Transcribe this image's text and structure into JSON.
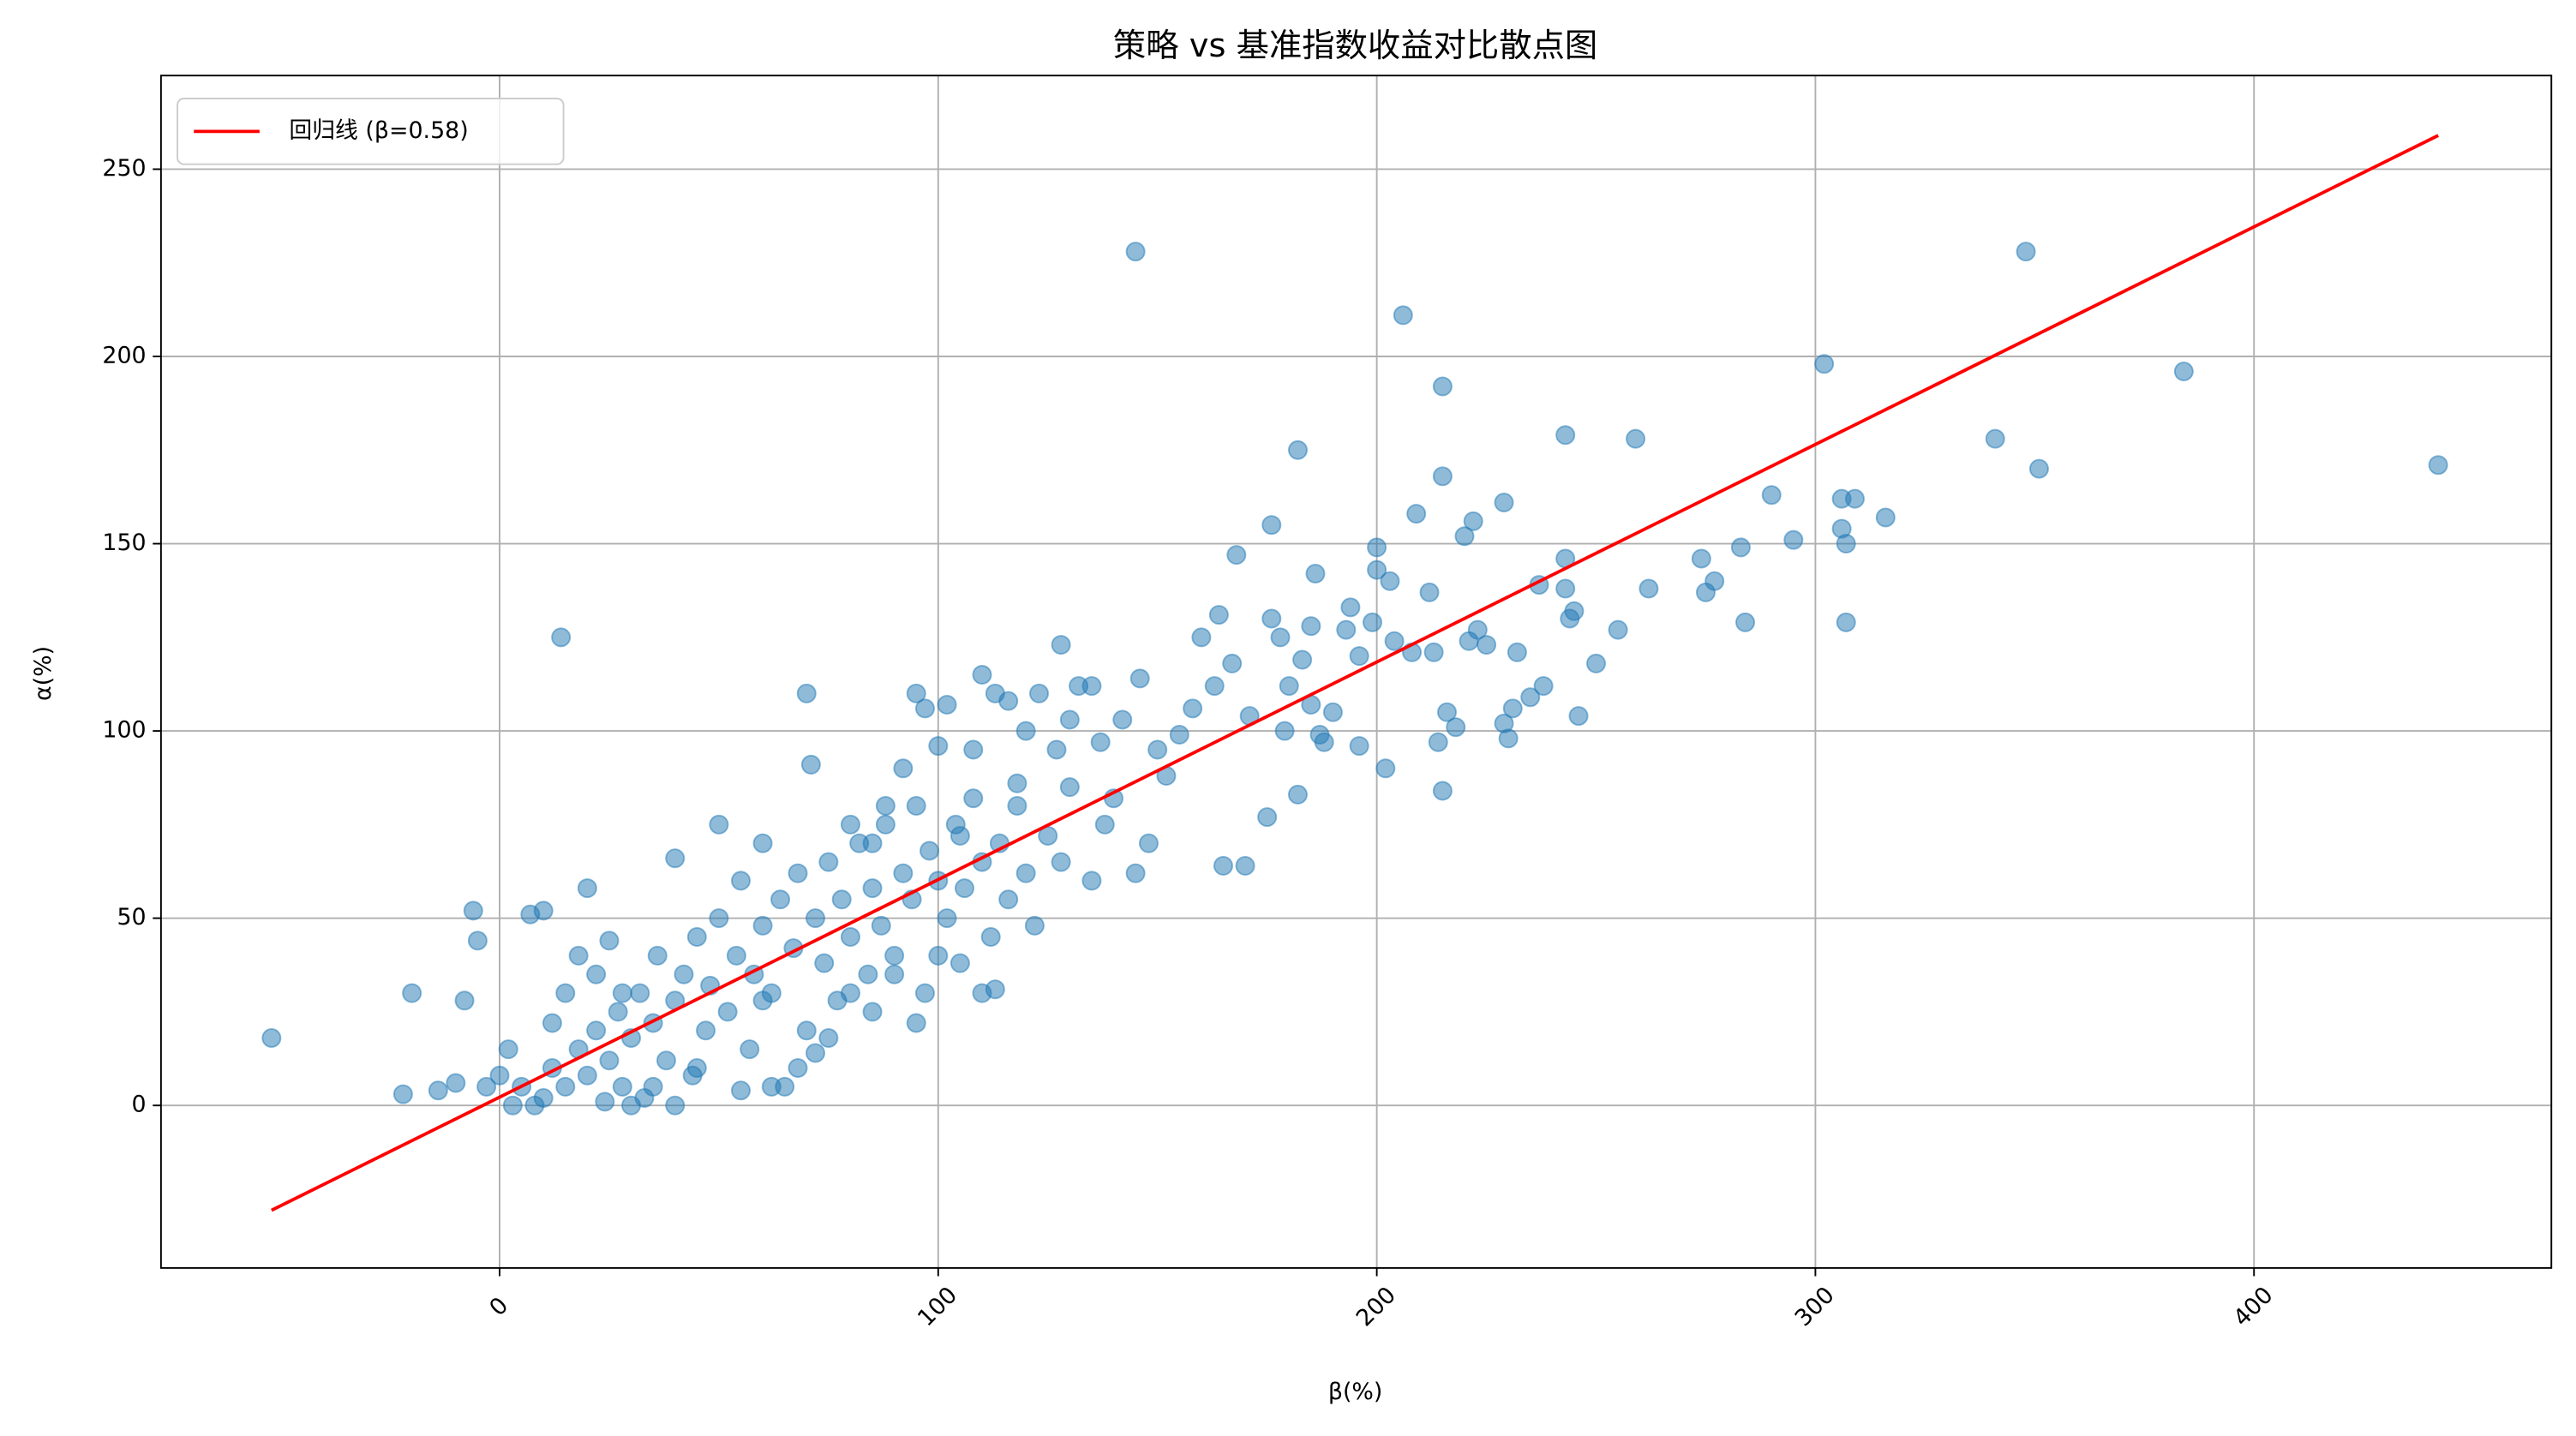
{
  "chart_data": {
    "type": "scatter",
    "title": "策略 vs 基准指数收益对比散点图",
    "x_label": "β(%)",
    "y_label": "α(%)",
    "xlim": [
      -77.2,
      467.8
    ],
    "ylim": [
      -43.4,
      275
    ],
    "xticks": [
      0,
      100,
      200,
      300,
      400
    ],
    "yticks": [
      0,
      50,
      100,
      150,
      200,
      250
    ],
    "grid": true,
    "legend": "upper left",
    "series": [
      {
        "color": "#1f77b4",
        "x": [
          -52,
          -20,
          -22,
          -8,
          14,
          -6,
          -5,
          7,
          145,
          206,
          215,
          182,
          243,
          259,
          348,
          302,
          384,
          341,
          351,
          442,
          316,
          306,
          309,
          306,
          307,
          307,
          290,
          295,
          283,
          274,
          277,
          275,
          284,
          262,
          255,
          250,
          246,
          244,
          245,
          243,
          243,
          237,
          238,
          235,
          231,
          229,
          230,
          232,
          229,
          222,
          220,
          215,
          215,
          214,
          216,
          218,
          221,
          223,
          225,
          213,
          212,
          209,
          200,
          200,
          203,
          204,
          208,
          202,
          199,
          196,
          193,
          194,
          186,
          185,
          187,
          188,
          190,
          196,
          183,
          180,
          178,
          176,
          176,
          171,
          168,
          164,
          167,
          163,
          165,
          170,
          175,
          182,
          179,
          185,
          160,
          158,
          155,
          152,
          150,
          146,
          145,
          148,
          142,
          140,
          137,
          135,
          132,
          130,
          128,
          127,
          123,
          120,
          118,
          116,
          113,
          110,
          108,
          105,
          102,
          100,
          97,
          95,
          92,
          88,
          85,
          80,
          70,
          71,
          60,
          50,
          40,
          20,
          10,
          5,
          8,
          10,
          12,
          15,
          18,
          20,
          22,
          24,
          25,
          27,
          28,
          30,
          32,
          33,
          35,
          36,
          38,
          40,
          42,
          44,
          45,
          47,
          48,
          50,
          52,
          54,
          55,
          57,
          58,
          60,
          62,
          64,
          65,
          67,
          68,
          70,
          72,
          74,
          75,
          77,
          78,
          80,
          82,
          84,
          85,
          87,
          88,
          90,
          92,
          94,
          95,
          97,
          98,
          100,
          102,
          104,
          106,
          108,
          110,
          112,
          114,
          116,
          118,
          120,
          122,
          125,
          128,
          130,
          135,
          138,
          0,
          2,
          -3,
          -10,
          -14,
          3,
          15,
          18,
          25,
          30,
          40,
          55,
          62,
          68,
          72,
          75,
          80,
          85,
          90,
          95,
          100,
          105,
          110,
          113,
          60,
          45,
          35,
          28,
          22,
          12
        ],
        "values": [
          18,
          30,
          3,
          28,
          125,
          52,
          44,
          51,
          228,
          211,
          192,
          175,
          179,
          178,
          228,
          198,
          196,
          178,
          170,
          171,
          157,
          162,
          162,
          154,
          150,
          129,
          163,
          151,
          149,
          146,
          140,
          137,
          129,
          138,
          127,
          118,
          104,
          130,
          132,
          138,
          146,
          139,
          112,
          109,
          106,
          102,
          98,
          121,
          161,
          156,
          152,
          168,
          84,
          97,
          105,
          101,
          124,
          127,
          123,
          121,
          137,
          158,
          149,
          143,
          140,
          124,
          121,
          90,
          129,
          120,
          127,
          133,
          142,
          128,
          99,
          97,
          105,
          96,
          119,
          112,
          125,
          155,
          130,
          104,
          147,
          131,
          118,
          112,
          64,
          64,
          77,
          83,
          100,
          107,
          125,
          106,
          99,
          88,
          95,
          114,
          62,
          70,
          103,
          82,
          97,
          112,
          112,
          103,
          123,
          95,
          110,
          100,
          86,
          108,
          110,
          115,
          95,
          72,
          107,
          96,
          106,
          110,
          90,
          80,
          70,
          75,
          110,
          91,
          70,
          75,
          66,
          58,
          52,
          5,
          0,
          2,
          10,
          5,
          15,
          8,
          20,
          1,
          12,
          25,
          5,
          18,
          30,
          2,
          22,
          40,
          12,
          28,
          35,
          8,
          45,
          20,
          32,
          50,
          25,
          40,
          60,
          15,
          35,
          48,
          30,
          55,
          5,
          42,
          62,
          20,
          50,
          38,
          65,
          28,
          55,
          45,
          70,
          35,
          58,
          48,
          75,
          40,
          62,
          55,
          80,
          30,
          68,
          60,
          50,
          75,
          58,
          82,
          65,
          45,
          70,
          55,
          80,
          62,
          48,
          72,
          65,
          85,
          60,
          75,
          8,
          15,
          5,
          6,
          4,
          0,
          30,
          40,
          44,
          0,
          0,
          4,
          5,
          10,
          14,
          18,
          30,
          25,
          35,
          22,
          40,
          38,
          30,
          31,
          28,
          10,
          5,
          30,
          35,
          22
        ]
      },
      {
        "type": "line",
        "name": "回归线 (β=0.58)",
        "color": "#ff0000",
        "x": [
          -52,
          442
        ],
        "values": [
          -28,
          259
        ]
      }
    ]
  }
}
